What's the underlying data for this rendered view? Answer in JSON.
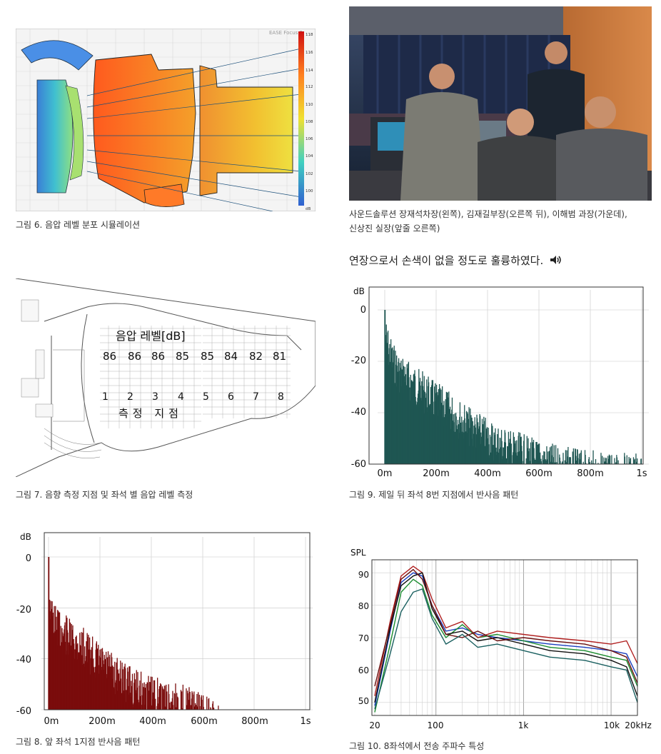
{
  "fig6": {
    "caption": "그림 6. 음압 레벨 분포 시뮬레이션",
    "watermark": "EASE Focus 2",
    "scale": [
      "118",
      "116",
      "114",
      "112",
      "110",
      "108",
      "106",
      "104",
      "102",
      "100",
      "dB"
    ]
  },
  "photo": {
    "caption_line1": "사운드솔루션 장재석차장(왼쪽), 김재길부장(오른쪽 뒤), 이해범 과장(가운데),",
    "caption_line2": "신상진 실장(앞줄 오른쪽)"
  },
  "body_text": "연장으로서 손색이 없을 정도로 훌륭하였다.",
  "fig7": {
    "caption": "그림 7. 음향 측정 지점 및 좌석 별 음압 레벨 측정",
    "level_title": "음압 레벨[dB]",
    "levels": [
      "86",
      "86",
      "86",
      "85",
      "85",
      "84",
      "82",
      "81"
    ],
    "points": [
      "1",
      "2",
      "3",
      "4",
      "5",
      "6",
      "7",
      "8"
    ],
    "points_title": "측정 지점"
  },
  "fig9": {
    "caption": "그림 9. 제일 뒤 좌석 8번 지점에서 반사음 패턴"
  },
  "fig8": {
    "caption": "그림 8. 앞 좌석 1지점 반사음 패턴"
  },
  "fig10": {
    "caption": "그림 10. 8좌석에서 전송 주파수 특성"
  },
  "chart_data": [
    {
      "type": "bar",
      "id": "fig9",
      "ylabel": "dB",
      "x_ticks": [
        "0m",
        "200m",
        "400m",
        "600m",
        "800m",
        "1s"
      ],
      "y_ticks": [
        "0",
        "-20",
        "-40",
        "-60"
      ],
      "xlim": [
        0,
        1000
      ],
      "ylim": [
        -60,
        0
      ],
      "color": "#1f5652",
      "envelope": [
        [
          0,
          0
        ],
        [
          10,
          -6
        ],
        [
          30,
          -12
        ],
        [
          60,
          -17
        ],
        [
          100,
          -20
        ],
        [
          150,
          -24
        ],
        [
          200,
          -28
        ],
        [
          260,
          -32
        ],
        [
          320,
          -37
        ],
        [
          400,
          -42
        ],
        [
          480,
          -46
        ],
        [
          560,
          -49
        ],
        [
          650,
          -52
        ],
        [
          750,
          -54
        ],
        [
          850,
          -55
        ],
        [
          1000,
          -56
        ]
      ]
    },
    {
      "type": "bar",
      "id": "fig8",
      "ylabel": "dB",
      "x_ticks": [
        "0m",
        "200m",
        "400m",
        "600m",
        "800m",
        "1s"
      ],
      "y_ticks": [
        "0",
        "-20",
        "-40",
        "-60"
      ],
      "xlim": [
        0,
        1000
      ],
      "ylim": [
        -60,
        0
      ],
      "color": "#7a0c0c",
      "envelope": [
        [
          0,
          0
        ],
        [
          10,
          -16
        ],
        [
          40,
          -20
        ],
        [
          80,
          -24
        ],
        [
          140,
          -28
        ],
        [
          200,
          -34
        ],
        [
          280,
          -40
        ],
        [
          360,
          -45
        ],
        [
          440,
          -48
        ],
        [
          520,
          -50
        ],
        [
          600,
          -53
        ],
        [
          650,
          -57
        ],
        [
          700,
          -60
        ]
      ]
    },
    {
      "type": "line",
      "id": "fig10",
      "ylabel": "SPL",
      "x_ticks": [
        "20",
        "100",
        "1k",
        "10k",
        "20kHz"
      ],
      "y_ticks": [
        "50",
        "60",
        "70",
        "80",
        "90"
      ],
      "xscale": "log",
      "xlim": [
        20,
        20000
      ],
      "ylim": [
        46,
        94
      ],
      "series": [
        {
          "color": "#1a3fbf",
          "points": [
            [
              20,
              49
            ],
            [
              30,
              72
            ],
            [
              40,
              87
            ],
            [
              55,
              90
            ],
            [
              70,
              89
            ],
            [
              90,
              80
            ],
            [
              130,
              72
            ],
            [
              200,
              73
            ],
            [
              300,
              71
            ],
            [
              500,
              70
            ],
            [
              1000,
              69
            ],
            [
              2000,
              68
            ],
            [
              5000,
              67
            ],
            [
              10000,
              66
            ],
            [
              15000,
              65
            ],
            [
              20000,
              58
            ]
          ]
        },
        {
          "color": "#1a8c2e",
          "points": [
            [
              20,
              47
            ],
            [
              30,
              68
            ],
            [
              40,
              84
            ],
            [
              55,
              88
            ],
            [
              70,
              86
            ],
            [
              90,
              77
            ],
            [
              130,
              70
            ],
            [
              200,
              74
            ],
            [
              300,
              70
            ],
            [
              500,
              71
            ],
            [
              1000,
              69
            ],
            [
              2000,
              67
            ],
            [
              5000,
              66
            ],
            [
              10000,
              64
            ],
            [
              15000,
              63
            ],
            [
              20000,
              55
            ]
          ]
        },
        {
          "color": "#b02020",
          "points": [
            [
              20,
              52
            ],
            [
              30,
              75
            ],
            [
              40,
              89
            ],
            [
              55,
              92
            ],
            [
              70,
              90
            ],
            [
              90,
              82
            ],
            [
              130,
              73
            ],
            [
              200,
              75
            ],
            [
              300,
              70
            ],
            [
              500,
              72
            ],
            [
              1000,
              71
            ],
            [
              2000,
              70
            ],
            [
              5000,
              69
            ],
            [
              10000,
              68
            ],
            [
              15000,
              69
            ],
            [
              20000,
              62
            ]
          ]
        },
        {
          "color": "#101010",
          "points": [
            [
              20,
              50
            ],
            [
              30,
              73
            ],
            [
              40,
              86
            ],
            [
              55,
              89
            ],
            [
              70,
              90
            ],
            [
              90,
              79
            ],
            [
              130,
              71
            ],
            [
              200,
              72
            ],
            [
              300,
              69
            ],
            [
              500,
              70
            ],
            [
              1000,
              68
            ],
            [
              2000,
              66
            ],
            [
              5000,
              65
            ],
            [
              10000,
              63
            ],
            [
              15000,
              61
            ],
            [
              20000,
              52
            ]
          ]
        },
        {
          "color": "#6a1010",
          "points": [
            [
              20,
              55
            ],
            [
              30,
              74
            ],
            [
              40,
              88
            ],
            [
              55,
              91
            ],
            [
              70,
              88
            ],
            [
              90,
              80
            ],
            [
              130,
              71
            ],
            [
              200,
              70
            ],
            [
              300,
              72
            ],
            [
              500,
              69
            ],
            [
              1000,
              70
            ],
            [
              2000,
              69
            ],
            [
              5000,
              68
            ],
            [
              10000,
              66
            ],
            [
              15000,
              64
            ],
            [
              20000,
              56
            ]
          ]
        },
        {
          "color": "#1a6060",
          "points": [
            [
              20,
              48
            ],
            [
              30,
              65
            ],
            [
              40,
              78
            ],
            [
              55,
              84
            ],
            [
              70,
              85
            ],
            [
              90,
              76
            ],
            [
              130,
              68
            ],
            [
              200,
              71
            ],
            [
              300,
              67
            ],
            [
              500,
              68
            ],
            [
              1000,
              66
            ],
            [
              2000,
              64
            ],
            [
              5000,
              63
            ],
            [
              10000,
              61
            ],
            [
              15000,
              60
            ],
            [
              20000,
              50
            ]
          ]
        }
      ]
    }
  ]
}
